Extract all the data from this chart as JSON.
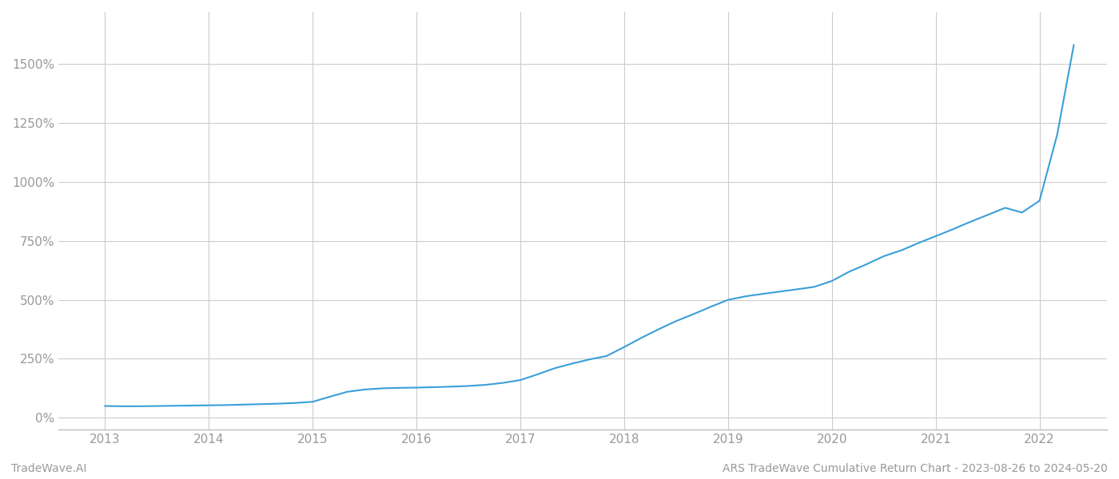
{
  "title": "",
  "footer_left": "TradeWave.AI",
  "footer_right": "ARS TradeWave Cumulative Return Chart - 2023-08-26 to 2024-05-20",
  "line_color": "#3a9fd8",
  "background_color": "#ffffff",
  "grid_color": "#cccccc",
  "x_years": [
    2013,
    2014,
    2015,
    2016,
    2017,
    2018,
    2019,
    2020,
    2021,
    2022
  ],
  "x_numeric": [
    2013.0,
    2013.17,
    2013.33,
    2013.5,
    2013.67,
    2013.83,
    2014.0,
    2014.17,
    2014.33,
    2014.5,
    2014.67,
    2014.83,
    2015.0,
    2015.17,
    2015.33,
    2015.5,
    2015.67,
    2015.83,
    2016.0,
    2016.17,
    2016.33,
    2016.5,
    2016.67,
    2016.83,
    2017.0,
    2017.17,
    2017.33,
    2017.5,
    2017.67,
    2017.83,
    2018.0,
    2018.17,
    2018.33,
    2018.5,
    2018.67,
    2018.83,
    2019.0,
    2019.17,
    2019.33,
    2019.5,
    2019.67,
    2019.83,
    2020.0,
    2020.17,
    2020.33,
    2020.5,
    2020.67,
    2020.83,
    2021.0,
    2021.17,
    2021.33,
    2021.5,
    2021.67,
    2021.83,
    2022.0,
    2022.17,
    2022.33
  ],
  "y_values": [
    50,
    49,
    49,
    50,
    51,
    52,
    53,
    54,
    56,
    58,
    60,
    63,
    68,
    90,
    110,
    120,
    125,
    127,
    128,
    130,
    132,
    135,
    140,
    148,
    160,
    185,
    210,
    230,
    248,
    262,
    300,
    340,
    375,
    410,
    440,
    470,
    500,
    515,
    525,
    535,
    545,
    555,
    580,
    620,
    650,
    685,
    710,
    740,
    770,
    800,
    830,
    860,
    890,
    870,
    920,
    1200,
    1580
  ],
  "yticks": [
    0,
    250,
    500,
    750,
    1000,
    1250,
    1500
  ],
  "ytick_labels": [
    "0%",
    "250%",
    "500%",
    "750%",
    "1000%",
    "1250%",
    "1500%"
  ],
  "xlim": [
    2012.55,
    2022.65
  ],
  "ylim": [
    -50,
    1720
  ],
  "line_width": 1.5,
  "tick_color": "#999999",
  "footer_fontsize": 10,
  "tick_fontsize": 11
}
